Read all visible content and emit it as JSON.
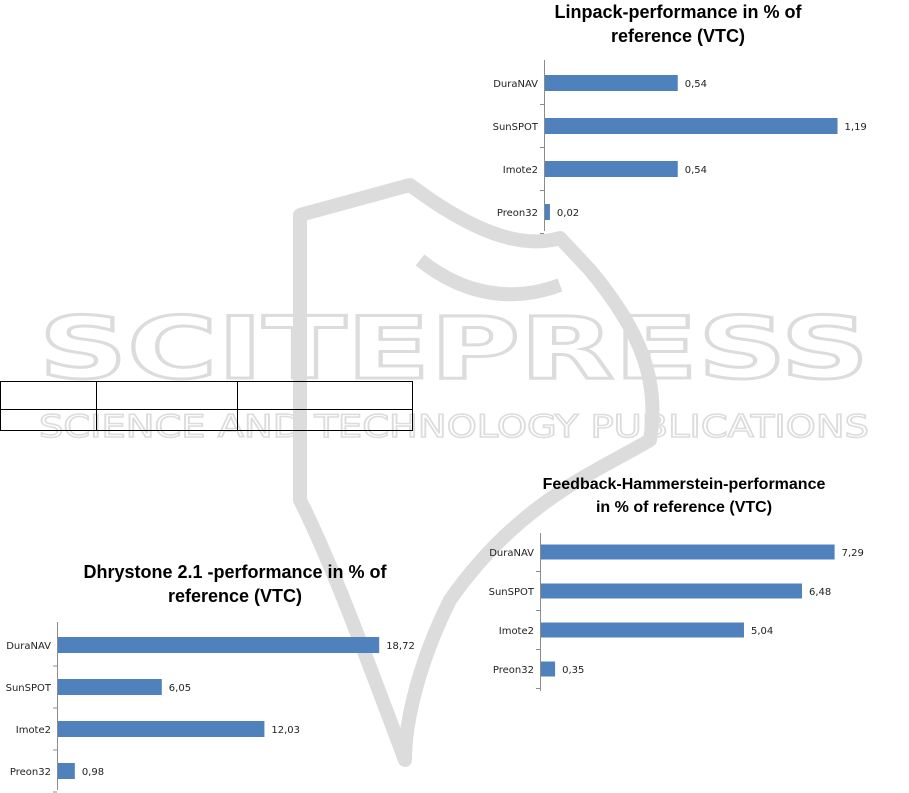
{
  "watermark": {
    "word": "SCITEPRESS",
    "tagline": "SCIENCE AND TECHNOLOGY PUBLICATIONS"
  },
  "colors": {
    "bar": "#4f81bd",
    "axis": "#8c8c8c"
  },
  "chart_data": [
    {
      "type": "bar",
      "orientation": "horizontal",
      "title": [
        "Linpack-performance in % of",
        "reference (VTC)"
      ],
      "categories": [
        "DuraNAV",
        "SunSPOT",
        "Imote2",
        "Preon32"
      ],
      "values": [
        0.54,
        1.19,
        0.54,
        0.02
      ],
      "value_labels": [
        "0,54",
        "1,19",
        "0,54",
        "0,02"
      ],
      "xlim": [
        0,
        1.2
      ],
      "grid": false,
      "legend": "none"
    },
    {
      "type": "bar",
      "orientation": "horizontal",
      "title": [
        "Feedback-Hammerstein-performance",
        "in % of reference (VTC)"
      ],
      "categories": [
        "DuraNAV",
        "SunSPOT",
        "Imote2",
        "Preon32"
      ],
      "values": [
        7.29,
        6.48,
        5.04,
        0.35
      ],
      "value_labels": [
        "7,29",
        "6,48",
        "5,04",
        "0,35"
      ],
      "xlim": [
        0,
        7.3
      ],
      "grid": false,
      "legend": "none"
    },
    {
      "type": "bar",
      "orientation": "horizontal",
      "title": [
        "Dhrystone 2.1 -performance in % of",
        "reference (VTC)"
      ],
      "categories": [
        "DuraNAV",
        "SunSPOT",
        "Imote2",
        "Preon32"
      ],
      "values": [
        18.72,
        6.05,
        12.03,
        0.98
      ],
      "value_labels": [
        "18,72",
        "6,05",
        "12,03",
        "0,98"
      ],
      "xlim": [
        0,
        19
      ],
      "grid": false,
      "legend": "none"
    }
  ]
}
